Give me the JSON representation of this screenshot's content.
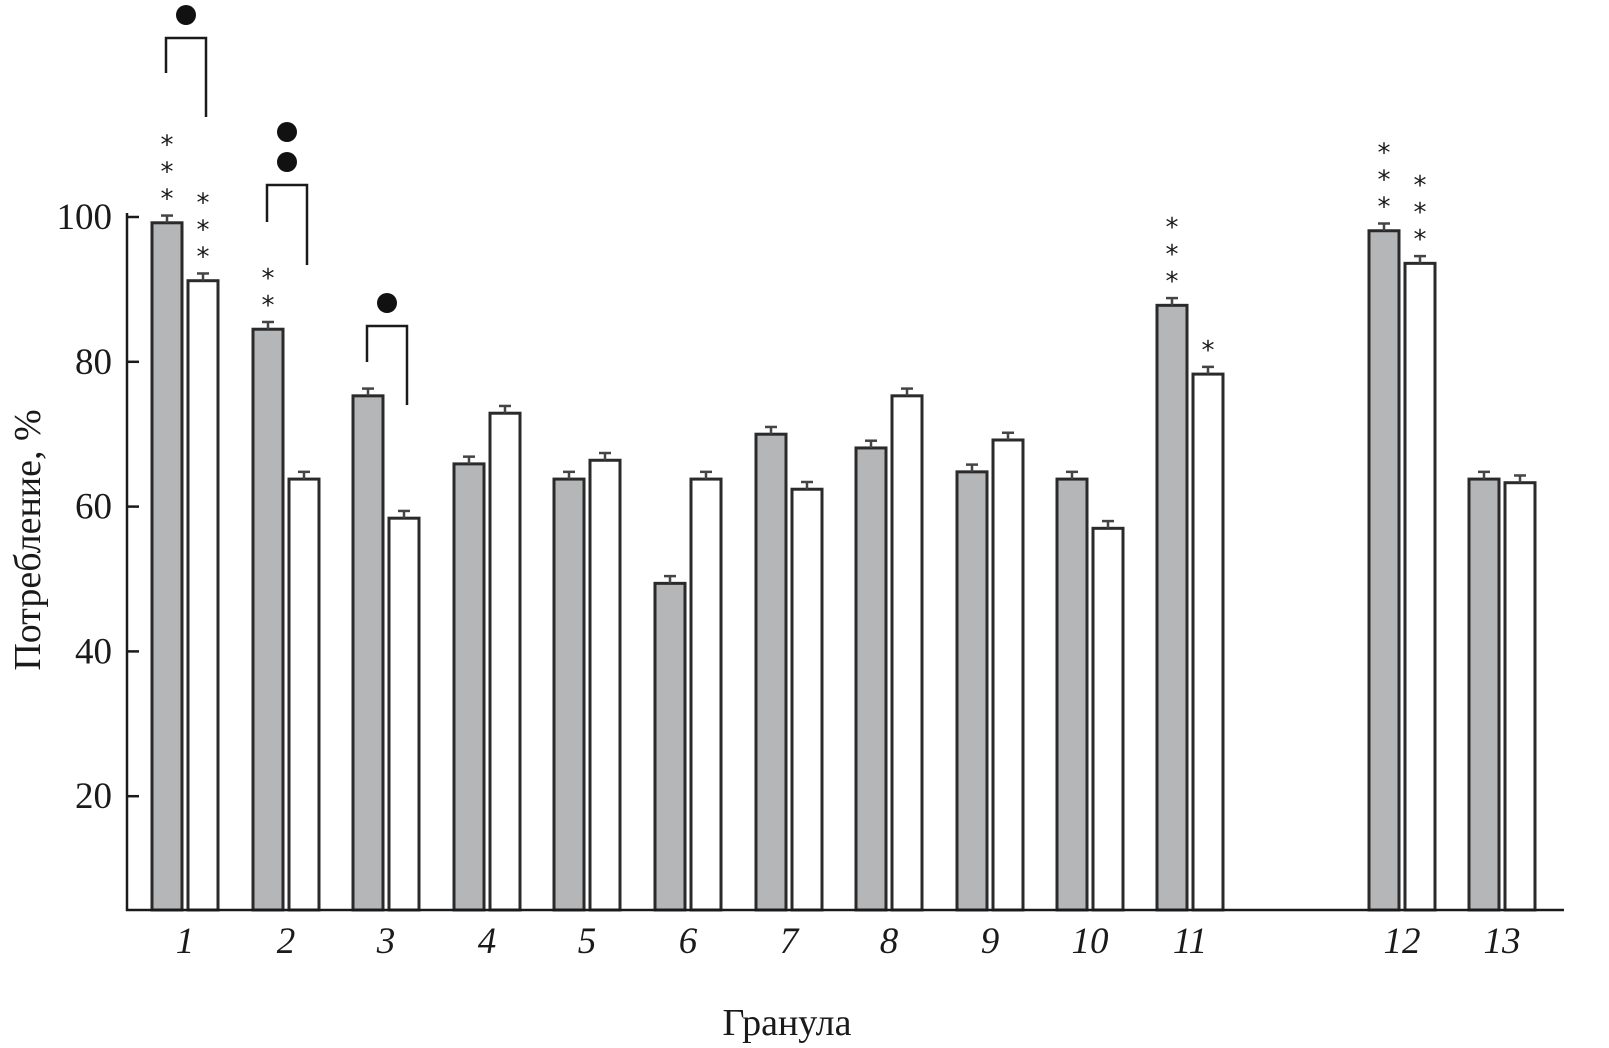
{
  "chart_data": {
    "type": "bar",
    "title": "",
    "xlabel": "Гранула",
    "ylabel": "Потребление, %",
    "ylim": [
      4.3,
      100
    ],
    "yticks": [
      20,
      40,
      60,
      80,
      100
    ],
    "grid": false,
    "legend": "none",
    "colors": {
      "gray": "#b5b6b8",
      "white": "#ffffff",
      "outline": "#2a2a2a"
    },
    "categories": [
      "1",
      "2",
      "3",
      "4",
      "5",
      "6",
      "7",
      "8",
      "9",
      "10",
      "11",
      "12",
      "13"
    ],
    "series": [
      {
        "fill": "gray",
        "values": [
          99.2,
          84.5,
          75.3,
          65.9,
          63.8,
          49.4,
          70.0,
          68.1,
          64.8,
          63.8,
          87.8,
          98.1,
          63.8
        ],
        "error": 1.0
      },
      {
        "fill": "white",
        "values": [
          91.2,
          63.8,
          58.4,
          72.9,
          66.4,
          63.8,
          62.4,
          75.3,
          69.2,
          57.0,
          78.3,
          93.6,
          63.3
        ],
        "error": 1.0
      }
    ],
    "annotations": [
      {
        "category": "1",
        "series": 0,
        "text": "***"
      },
      {
        "category": "1",
        "series": 1,
        "text": "***"
      },
      {
        "category": "2",
        "series": 0,
        "text": "**"
      },
      {
        "category": "11",
        "series": 0,
        "text": "***"
      },
      {
        "category": "11",
        "series": 1,
        "text": "*"
      },
      {
        "category": "12",
        "series": 0,
        "text": "***"
      },
      {
        "category": "12",
        "series": 1,
        "text": "***"
      }
    ],
    "pair_significance": [
      {
        "category": "1",
        "marks": 1
      },
      {
        "category": "2",
        "marks": 2
      },
      {
        "category": "3",
        "marks": 1
      }
    ]
  }
}
